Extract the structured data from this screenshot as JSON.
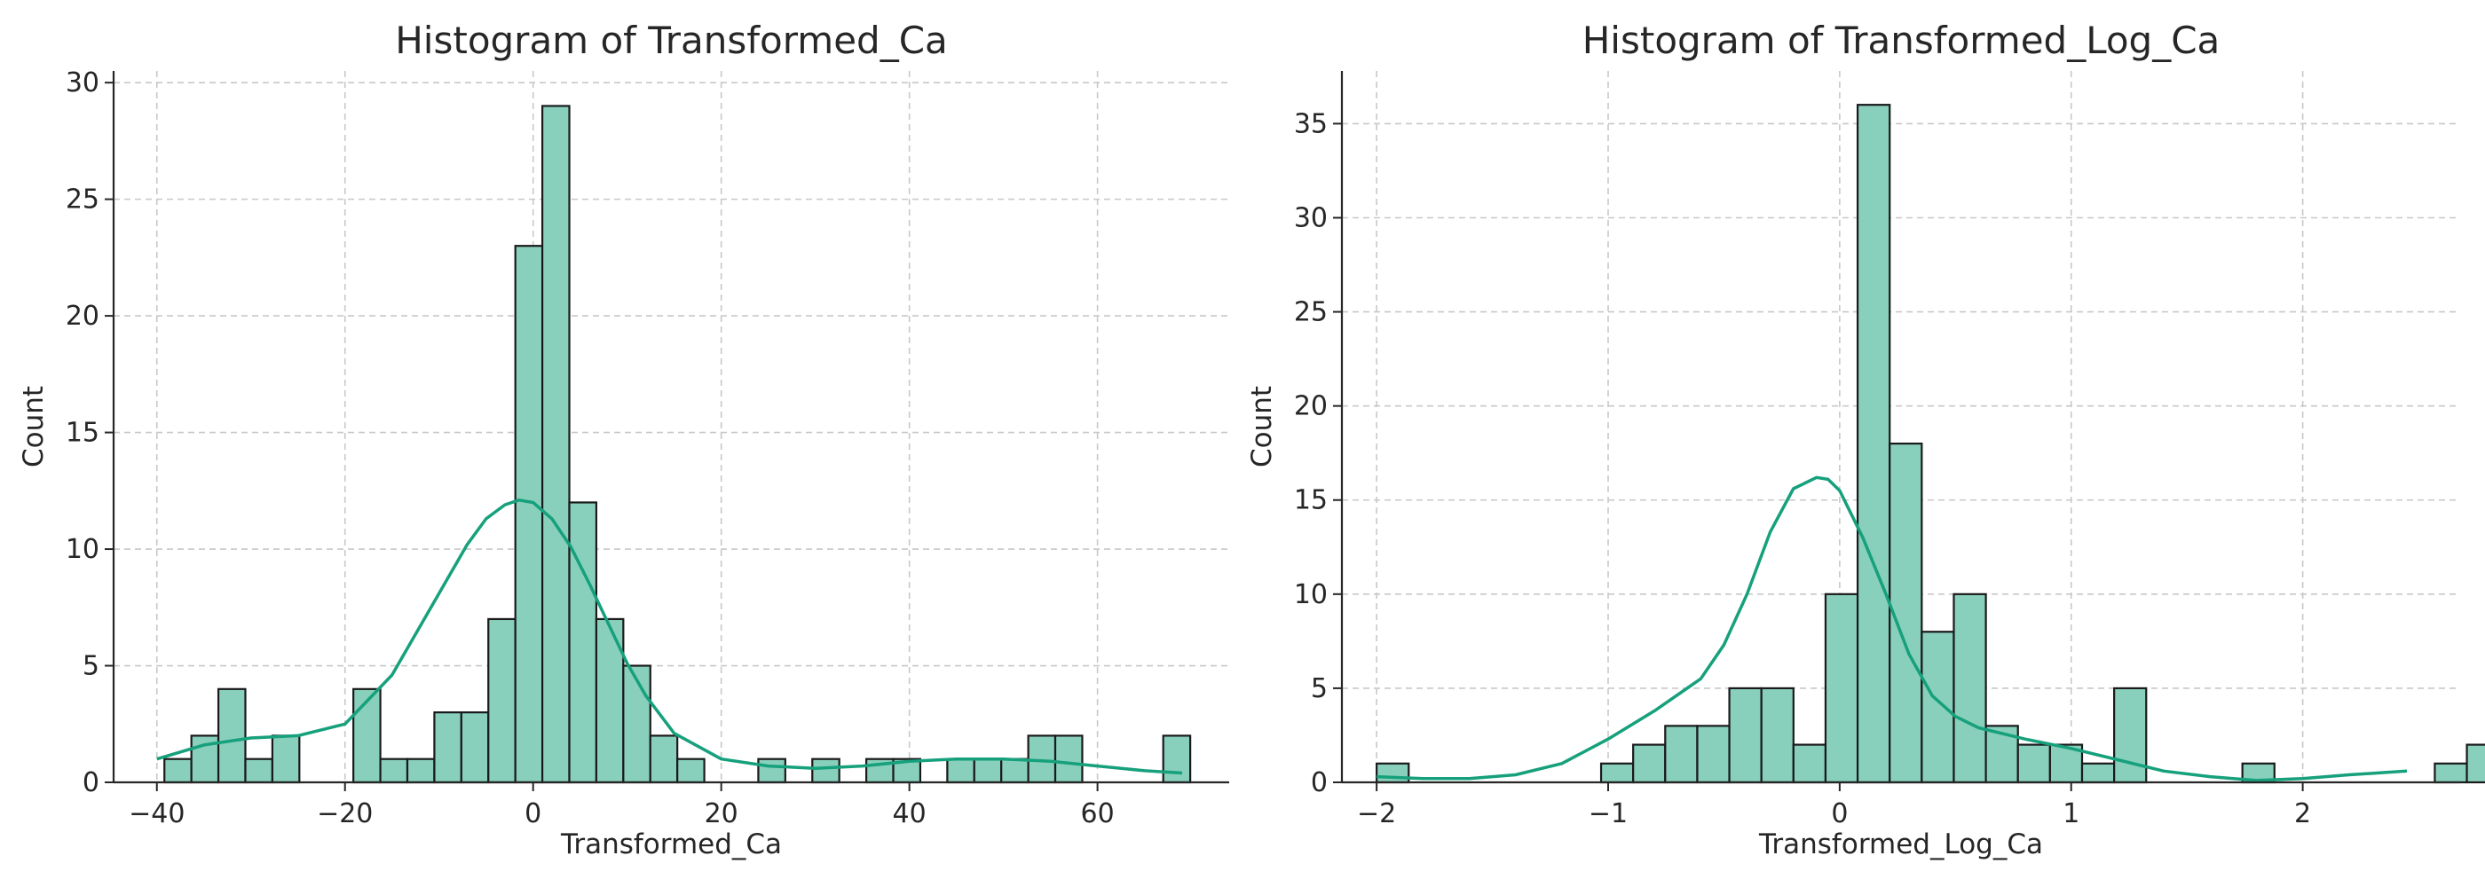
{
  "chart_data": [
    {
      "type": "bar",
      "title": "Histogram of Transformed_Ca",
      "xlabel": "Transformed_Ca",
      "ylabel": "Count",
      "xlim": [
        -44.6,
        74.0
      ],
      "ylim": [
        0,
        30.5
      ],
      "xticks": [
        -40,
        -20,
        0,
        20,
        40,
        60
      ],
      "yticks": [
        0,
        5,
        10,
        15,
        20,
        25,
        30
      ],
      "xtick_labels": [
        "−40",
        "−20",
        "0",
        "20",
        "40",
        "60"
      ],
      "ytick_labels": [
        "0",
        "5",
        "10",
        "15",
        "20",
        "25",
        "30"
      ],
      "grid": true,
      "bin_start": -39.2,
      "bin_width": 2.87,
      "counts": [
        1,
        2,
        4,
        1,
        2,
        0,
        0,
        4,
        1,
        1,
        3,
        3,
        7,
        23,
        29,
        12,
        7,
        5,
        2,
        1,
        0,
        0,
        1,
        0,
        1,
        0,
        1,
        1,
        0,
        1,
        1,
        1,
        2,
        2,
        0,
        0,
        0,
        2
      ],
      "kde": {
        "x": [
          -40,
          -35,
          -30,
          -25,
          -20,
          -15,
          -10,
          -7,
          -5,
          -3,
          -1.5,
          0,
          2,
          4,
          6,
          8,
          10,
          12,
          15,
          20,
          25,
          30,
          35,
          40,
          45,
          50,
          55,
          60,
          65,
          69
        ],
        "y": [
          1.0,
          1.6,
          1.9,
          2.0,
          2.5,
          4.6,
          8.1,
          10.2,
          11.3,
          11.9,
          12.1,
          12.0,
          11.3,
          10.1,
          8.5,
          6.8,
          5.1,
          3.7,
          2.1,
          1.0,
          0.7,
          0.6,
          0.7,
          0.9,
          1.0,
          1.0,
          0.9,
          0.7,
          0.5,
          0.4
        ]
      }
    },
    {
      "type": "bar",
      "title": "Histogram of Transformed_Log_Ca",
      "xlabel": "Transformed_Log_Ca",
      "ylabel": "Count",
      "xlim": [
        -2.15,
        2.68
      ],
      "ylim": [
        0,
        37.8
      ],
      "xticks": [
        -2,
        -1,
        0,
        1,
        2
      ],
      "yticks": [
        0,
        5,
        10,
        15,
        20,
        25,
        30,
        35
      ],
      "xtick_labels": [
        "−2",
        "−1",
        "0",
        "1",
        "2"
      ],
      "ytick_labels": [
        "0",
        "5",
        "10",
        "15",
        "20",
        "25",
        "30",
        "35"
      ],
      "grid": true,
      "bin_start": -2.0,
      "bin_width": 0.1385,
      "counts": [
        1,
        0,
        0,
        0,
        0,
        0,
        0,
        1,
        2,
        3,
        3,
        5,
        5,
        2,
        10,
        36,
        18,
        8,
        10,
        3,
        2,
        2,
        1,
        5,
        0,
        0,
        0,
        1,
        0,
        0,
        0,
        0,
        0,
        1,
        2
      ],
      "kde": {
        "x": [
          -2.0,
          -1.8,
          -1.6,
          -1.4,
          -1.2,
          -1.0,
          -0.8,
          -0.6,
          -0.5,
          -0.4,
          -0.3,
          -0.2,
          -0.1,
          -0.05,
          0.0,
          0.1,
          0.2,
          0.3,
          0.4,
          0.5,
          0.6,
          0.8,
          1.0,
          1.2,
          1.4,
          1.6,
          1.8,
          2.0,
          2.2,
          2.45
        ],
        "y": [
          0.3,
          0.2,
          0.2,
          0.4,
          1.0,
          2.3,
          3.8,
          5.5,
          7.3,
          10.0,
          13.3,
          15.6,
          16.2,
          16.1,
          15.5,
          13.0,
          10.0,
          6.8,
          4.6,
          3.5,
          2.9,
          2.3,
          1.8,
          1.2,
          0.6,
          0.3,
          0.1,
          0.2,
          0.4,
          0.6
        ]
      }
    }
  ]
}
